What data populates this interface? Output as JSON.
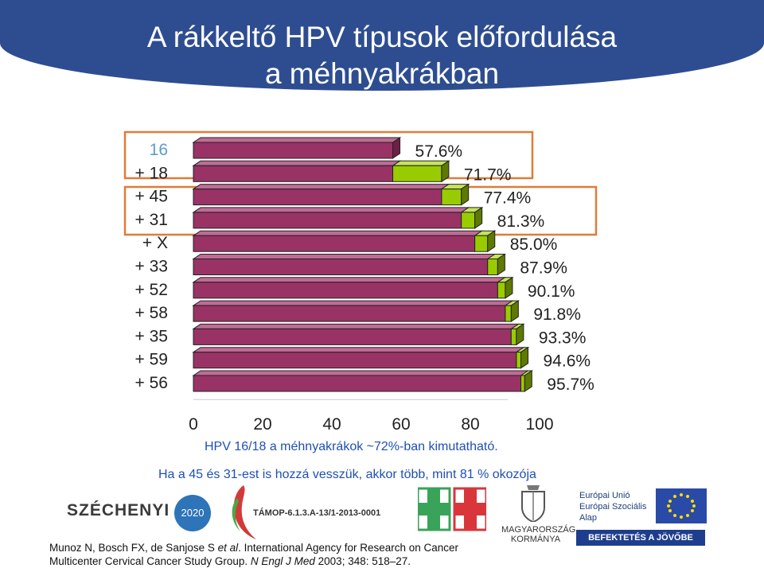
{
  "title_line1": "A rákkeltő HPV típusok előfordulása",
  "title_line2": "a méhnyakrákban",
  "chart_data": {
    "type": "bar",
    "orientation": "horizontal",
    "categories": [
      "16",
      "+ 18",
      "+ 45",
      "+ 31",
      "+ X",
      "+ 33",
      "+ 52",
      "+ 58",
      "+ 35",
      "+ 59",
      "+ 56"
    ],
    "values": [
      57.6,
      71.7,
      77.4,
      81.3,
      85.0,
      87.9,
      90.1,
      91.8,
      93.3,
      94.6,
      95.7
    ],
    "value_labels": [
      "57.6%",
      "71.7%",
      "77.4%",
      "81.3%",
      "85.0%",
      "87.9%",
      "90.1%",
      "91.8%",
      "93.3%",
      "94.6%",
      "95.7%"
    ],
    "xlim": [
      0,
      100
    ],
    "xticks": [
      "0",
      "20",
      "40",
      "60",
      "80",
      "100"
    ],
    "first_label_color": "#5b9bd5",
    "base_color": "#993366",
    "increment_color": "#99cc00",
    "highlight_box_color": "#e07b39"
  },
  "notes": {
    "line1": "HPV 16/18 a méhnyakrákok ~72%-ban kimutatható.",
    "line2": "Ha a 45 és 31-est is hozzá vesszük, akkor több, mint 81 % okozója"
  },
  "logos": {
    "szechenyi": "SZÉCHENYI",
    "szechenyi_year": "2020",
    "tamop": "TÁMOP-6.1.3.A-13/1-2013-0001",
    "mk_line1": "MAGYARORSZÁG",
    "mk_line2": "KORMÁNYA",
    "eu_line1": "Európai Unió",
    "eu_line2": "Európai Szociális",
    "eu_line3": "Alap",
    "eu_bar": "BEFEKTETÉS A JÖVŐBE"
  },
  "citation": {
    "line1_a": "Munoz N, Bosch FX, de Sanjose S ",
    "line1_etal": "et al",
    "line1_b": ". International Agency for Research on Cancer",
    "line2_a": "Multicenter Cervical Cancer Study Group. ",
    "line2_journal": "N Engl J Med",
    "line2_b": " 2003; 348: 518–27."
  }
}
